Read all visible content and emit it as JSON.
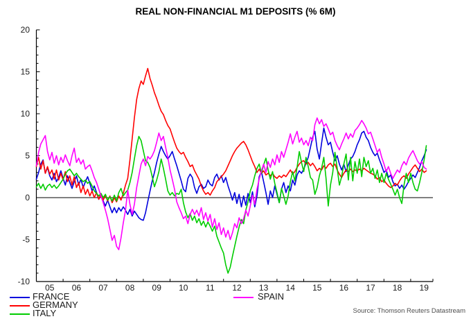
{
  "source": "Source: Thomson Reuters Datastream",
  "chart_data": {
    "type": "line",
    "title": "REAL NON-FINANCIAL M1 DEPOSITS (% 6M)",
    "xlabel": "",
    "ylabel": "",
    "x_unit": "monthly",
    "x_start": "2005-01",
    "x_end": "2019-08",
    "x_tick_labels": [
      "05",
      "06",
      "07",
      "08",
      "09",
      "10",
      "11",
      "12",
      "13",
      "14",
      "15",
      "16",
      "17",
      "18",
      "19"
    ],
    "ylim": [
      -10,
      20
    ],
    "y_ticks": [
      20,
      15,
      10,
      5,
      0,
      -5,
      -10
    ],
    "y_minor_tick_step": 1,
    "grid": false,
    "zero_line": true,
    "legend_position": "bottom",
    "series": [
      {
        "name": "FRANCE",
        "color": "#0000dd",
        "values": [
          2.2,
          3.0,
          4.0,
          4.5,
          2.9,
          3.6,
          2.6,
          2.1,
          2.9,
          1.9,
          2.4,
          3.2,
          2.3,
          1.5,
          2.6,
          1.8,
          1.1,
          1.9,
          2.6,
          1.5,
          2.2,
          1.2,
          1.9,
          2.5,
          1.7,
          0.8,
          1.4,
          0.6,
          -0.2,
          0.4,
          -0.4,
          -1.0,
          -0.3,
          -1.1,
          -1.8,
          -1.2,
          -1.8,
          -1.2,
          -1.6,
          -1.1,
          -1.5,
          -2.0,
          -1.4,
          -2.2,
          -1.6,
          -2.0,
          -2.4,
          -2.6,
          -2.7,
          -1.8,
          -0.5,
          0.8,
          2.0,
          3.0,
          4.2,
          5.2,
          6.1,
          5.5,
          5.0,
          4.6,
          5.0,
          5.5,
          4.6,
          3.8,
          2.9,
          2.0,
          1.0,
          0.7,
          2.3,
          2.8,
          2.4,
          1.2,
          0.5,
          1.3,
          1.6,
          1.1,
          1.3,
          2.1,
          1.6,
          1.4,
          2.4,
          2.8,
          2.1,
          2.6,
          1.8,
          2.4,
          1.4,
          0.6,
          -0.3,
          0.6,
          -0.7,
          0.4,
          -1.1,
          0.2,
          -0.9,
          0.5,
          -0.6,
          0.7,
          -1.1,
          0.2,
          2.5,
          3.1,
          1.9,
          0.6,
          -0.8,
          0.8,
          0.0,
          1.4,
          0.4,
          -0.6,
          1.0,
          1.8,
          0.6,
          1.4,
          0.8,
          2.1,
          1.5,
          2.7,
          3.2,
          2.9,
          3.4,
          4.1,
          4.8,
          6.0,
          7.2,
          7.9,
          5.8,
          4.6,
          6.5,
          8.3,
          7.2,
          6.3,
          6.6,
          5.4,
          4.4,
          5.0,
          4.0,
          3.3,
          4.0,
          3.1,
          3.9,
          4.6,
          4.9,
          5.5,
          6.3,
          6.9,
          7.7,
          7.9,
          7.2,
          6.8,
          6.0,
          5.4,
          5.0,
          5.3,
          4.5,
          3.8,
          3.0,
          3.3,
          2.4,
          2.7,
          1.9,
          1.4,
          1.6,
          1.1,
          1.5,
          1.0,
          1.4,
          1.9,
          2.3,
          2.7,
          2.4,
          3.0,
          3.6,
          4.4,
          5.0,
          5.7
        ]
      },
      {
        "name": "GERMANY",
        "color": "#ff0000",
        "values": [
          3.7,
          4.8,
          3.4,
          4.4,
          2.9,
          3.7,
          2.8,
          3.3,
          2.2,
          3.3,
          2.1,
          2.9,
          2.1,
          3.1,
          1.9,
          2.6,
          1.5,
          2.5,
          1.2,
          1.8,
          0.6,
          1.4,
          0.4,
          1.0,
          0.2,
          0.8,
          0.0,
          0.6,
          -0.2,
          0.4,
          -0.3,
          0.3,
          -0.4,
          0.2,
          -0.6,
          0.0,
          -0.5,
          0.2,
          -0.3,
          0.5,
          1.5,
          2.3,
          4.5,
          7.0,
          9.5,
          11.7,
          13.0,
          13.9,
          13.5,
          14.5,
          15.4,
          14.2,
          13.4,
          12.5,
          11.8,
          11.0,
          10.3,
          9.9,
          9.2,
          8.6,
          8.2,
          7.4,
          6.6,
          5.9,
          5.5,
          5.2,
          5.4,
          4.8,
          4.3,
          3.7,
          3.9,
          3.2,
          2.7,
          2.2,
          1.4,
          0.8,
          0.4,
          0.6,
          0.3,
          0.8,
          1.2,
          1.9,
          2.2,
          2.5,
          2.8,
          3.2,
          3.8,
          4.4,
          5.0,
          5.5,
          5.9,
          6.2,
          6.5,
          6.7,
          6.3,
          5.7,
          5.0,
          4.3,
          3.7,
          3.0,
          3.4,
          2.9,
          3.2,
          2.7,
          2.9,
          2.6,
          2.9,
          2.5,
          2.3,
          2.6,
          2.4,
          2.7,
          2.5,
          2.9,
          3.3,
          2.8,
          3.1,
          3.6,
          4.0,
          4.3,
          4.4,
          4.0,
          4.2,
          3.8,
          4.1,
          3.7,
          3.2,
          3.5,
          3.3,
          3.8,
          3.5,
          3.9,
          4.1,
          3.7,
          4.0,
          3.3,
          2.8,
          2.4,
          2.9,
          3.3,
          3.1,
          3.4,
          3.1,
          3.3,
          3.2,
          3.4,
          3.2,
          3.5,
          3.3,
          3.1,
          2.9,
          2.8,
          2.6,
          2.2,
          2.4,
          1.9,
          2.1,
          1.7,
          1.4,
          1.2,
          1.4,
          1.7,
          1.5,
          2.0,
          2.4,
          2.6,
          2.3,
          2.8,
          3.2,
          3.6,
          3.9,
          3.5,
          3.1,
          3.4,
          3.0,
          3.2
        ]
      },
      {
        "name": "ITALY",
        "color": "#00cc00",
        "values": [
          1.3,
          1.7,
          1.1,
          1.6,
          0.9,
          1.4,
          1.6,
          1.2,
          1.5,
          1.1,
          1.4,
          1.8,
          2.2,
          2.8,
          3.2,
          3.4,
          3.0,
          2.6,
          2.9,
          2.5,
          2.2,
          1.9,
          2.1,
          1.7,
          1.9,
          1.4,
          0.8,
          0.5,
          0.2,
          0.5,
          0.0,
          0.4,
          -0.3,
          0.1,
          -0.4,
          0.3,
          -0.4,
          0.6,
          1.1,
          0.2,
          0.6,
          0.9,
          1.8,
          3.0,
          4.6,
          6.2,
          7.3,
          6.8,
          5.6,
          4.4,
          4.2,
          3.6,
          2.5,
          1.3,
          2.1,
          3.1,
          4.6,
          3.5,
          2.2,
          0.8,
          0.3,
          0.6,
          0.2,
          0.5,
          0.4,
          1.0,
          -0.6,
          -1.7,
          -2.4,
          -1.9,
          -2.7,
          -2.2,
          -3.0,
          -2.5,
          -3.3,
          -2.8,
          -3.5,
          -2.9,
          -3.4,
          -4.0,
          -3.4,
          -4.6,
          -5.3,
          -6.0,
          -6.6,
          -8.0,
          -9.0,
          -8.3,
          -7.0,
          -5.8,
          -4.6,
          -3.5,
          -2.6,
          -3.1,
          -1.5,
          -0.5,
          0.8,
          1.5,
          2.6,
          3.5,
          4.0,
          2.9,
          3.9,
          4.7,
          3.3,
          2.2,
          3.1,
          1.7,
          0.6,
          -0.6,
          1.1,
          0.2,
          -0.8,
          0.2,
          1.9,
          3.1,
          2.0,
          3.6,
          5.5,
          4.2,
          3.1,
          4.8,
          3.7,
          2.4,
          2.1,
          0.4,
          1.2,
          2.6,
          3.5,
          4.8,
          2.3,
          -1.0,
          1.5,
          3.0,
          5.4,
          3.5,
          1.5,
          2.5,
          4.0,
          5.2,
          2.1,
          4.8,
          2.0,
          4.3,
          2.9,
          4.6,
          2.5,
          4.8,
          3.7,
          4.4,
          2.9,
          3.5,
          2.3,
          3.3,
          1.8,
          2.9,
          1.8,
          2.9,
          2.2,
          1.6,
          1.0,
          0.3,
          1.0,
          0.0,
          -0.7,
          1.5,
          2.9,
          1.8,
          2.9,
          1.8,
          1.0,
          0.8,
          1.8,
          3.0,
          4.5,
          6.2
        ]
      },
      {
        "name": "SPAIN",
        "color": "#ff00ff",
        "values": [
          3.8,
          5.4,
          6.4,
          6.9,
          7.4,
          5.5,
          4.5,
          5.4,
          4.1,
          5.0,
          3.9,
          4.8,
          4.2,
          5.1,
          4.4,
          3.8,
          5.0,
          5.9,
          4.2,
          4.7,
          4.0,
          4.5,
          3.4,
          3.7,
          3.9,
          3.2,
          2.4,
          1.8,
          1.0,
          0.2,
          -0.6,
          -1.5,
          -2.5,
          -3.8,
          -5.1,
          -4.5,
          -5.8,
          -6.2,
          -4.8,
          -3.0,
          -1.5,
          0.9,
          -0.8,
          -2.0,
          -0.8,
          1.2,
          2.6,
          4.0,
          4.6,
          3.8,
          4.9,
          4.6,
          5.0,
          5.6,
          6.6,
          7.7,
          6.8,
          7.3,
          6.0,
          4.8,
          3.3,
          2.2,
          1.0,
          -0.5,
          -1.2,
          -1.8,
          -2.5,
          -2.2,
          -3.1,
          -2.0,
          -1.4,
          -2.0,
          -1.5,
          -2.2,
          -1.2,
          -2.6,
          -1.8,
          -2.8,
          -2.0,
          -3.5,
          -2.5,
          -3.8,
          -3.0,
          -4.4,
          -3.6,
          -4.7,
          -3.9,
          -5.0,
          -4.2,
          -3.1,
          -3.6,
          -2.4,
          -3.1,
          -2.5,
          -1.5,
          -2.2,
          -1.0,
          0.3,
          -0.8,
          1.0,
          2.2,
          3.2,
          4.0,
          3.0,
          4.3,
          3.6,
          4.6,
          3.9,
          5.1,
          4.2,
          5.5,
          4.8,
          5.7,
          6.6,
          7.6,
          6.4,
          7.2,
          7.9,
          6.6,
          7.1,
          6.3,
          6.8,
          6.2,
          7.2,
          6.8,
          8.7,
          9.5,
          8.8,
          9.3,
          8.5,
          8.8,
          8.2,
          7.5,
          7.8,
          6.8,
          6.2,
          5.7,
          6.4,
          7.0,
          7.7,
          7.0,
          7.6,
          7.2,
          8.0,
          8.3,
          8.7,
          9.2,
          8.8,
          8.3,
          7.6,
          7.8,
          7.0,
          6.2,
          5.4,
          5.8,
          4.8,
          4.0,
          3.1,
          3.7,
          2.9,
          2.3,
          2.8,
          3.3,
          3.0,
          3.8,
          4.3,
          3.9,
          4.7,
          5.2,
          5.6,
          5.0,
          4.4,
          4.0,
          4.3,
          3.6,
          3.4
        ]
      }
    ]
  }
}
